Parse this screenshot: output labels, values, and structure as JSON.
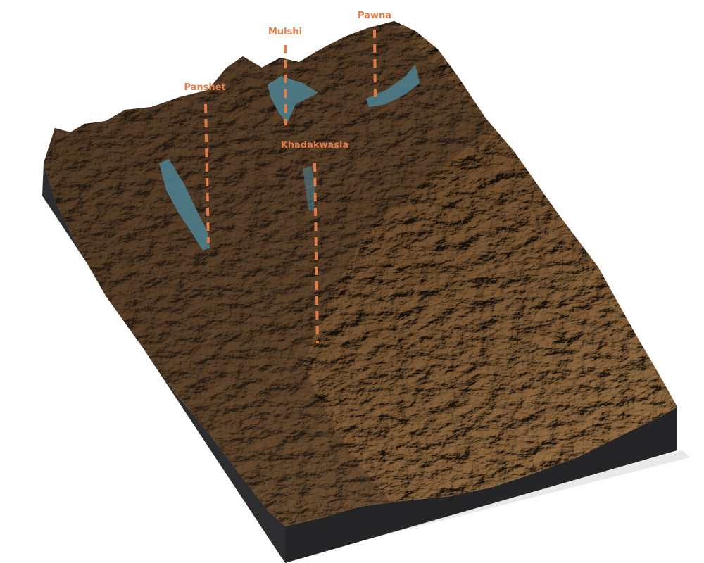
{
  "map": {
    "type": "3d-relief-block",
    "colors": {
      "background": "#ffffff",
      "block_side": "#2b2b2d",
      "terrain_dark": "#4a3a2c",
      "terrain_mid": "#7a6248",
      "terrain_light": "#a88a66",
      "water": "#4d7d8c",
      "marker": "#e07c4a"
    },
    "dams": [
      {
        "name": "Panshet"
      },
      {
        "name": "Mulshi"
      },
      {
        "name": "Pawna"
      },
      {
        "name": "Khadakwasla"
      }
    ]
  }
}
